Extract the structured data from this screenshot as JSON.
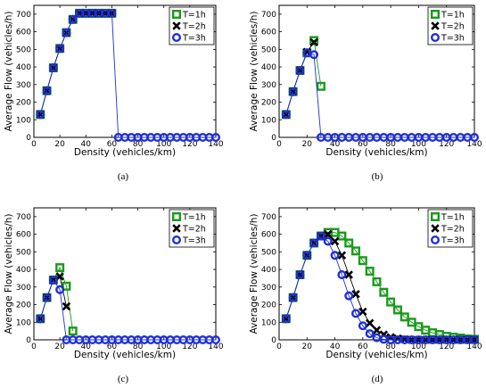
{
  "chart_data": [
    {
      "type": "scatter",
      "caption": "(a)",
      "xlabel": "Density (vehicles/km)",
      "ylabel": "Average Flow (vehicles/h)",
      "xlim": [
        0,
        140
      ],
      "ylim": [
        0,
        750
      ],
      "xticks": [
        0,
        20,
        40,
        60,
        80,
        100,
        120,
        140
      ],
      "yticks": [
        0,
        100,
        200,
        300,
        400,
        500,
        600,
        700
      ],
      "legend_position": "top-right",
      "series": [
        {
          "name": "T=1h",
          "color": "#1a9a1a",
          "marker": "square",
          "x": [
            5,
            10,
            15,
            20,
            25,
            30,
            35,
            40,
            45,
            50,
            55,
            60
          ],
          "y": [
            130,
            265,
            395,
            505,
            595,
            670,
            705,
            705,
            705,
            705,
            705,
            705
          ]
        },
        {
          "name": "T=2h",
          "color": "#000000",
          "marker": "x",
          "x": [
            5,
            10,
            15,
            20,
            25,
            30,
            35,
            40,
            45,
            50,
            55,
            60
          ],
          "y": [
            130,
            265,
            395,
            505,
            595,
            670,
            705,
            705,
            705,
            705,
            705,
            705
          ]
        },
        {
          "name": "T=3h",
          "color": "#1f2fd6",
          "marker": "circle",
          "x": [
            5,
            10,
            15,
            20,
            25,
            30,
            35,
            40,
            45,
            50,
            55,
            60,
            65,
            70,
            75,
            80,
            85,
            90,
            95,
            100,
            105,
            110,
            115,
            120,
            125,
            130,
            135,
            140
          ],
          "y": [
            130,
            265,
            395,
            505,
            595,
            670,
            705,
            705,
            705,
            705,
            705,
            705,
            0,
            0,
            0,
            0,
            0,
            0,
            0,
            0,
            0,
            0,
            0,
            0,
            0,
            0,
            0,
            0
          ]
        }
      ]
    },
    {
      "type": "scatter",
      "caption": "(b)",
      "xlabel": "Density (vehicles/km)",
      "ylabel": "Average Flow (vehicles/h)",
      "xlim": [
        0,
        140
      ],
      "ylim": [
        0,
        750
      ],
      "xticks": [
        0,
        20,
        40,
        60,
        80,
        100,
        120,
        140
      ],
      "yticks": [
        0,
        100,
        200,
        300,
        400,
        500,
        600,
        700
      ],
      "legend_position": "top-right",
      "series": [
        {
          "name": "T=1h",
          "color": "#1a9a1a",
          "marker": "square",
          "x": [
            5,
            10,
            15,
            20,
            25,
            30
          ],
          "y": [
            130,
            260,
            380,
            480,
            550,
            290
          ]
        },
        {
          "name": "T=2h",
          "color": "#000000",
          "marker": "x",
          "x": [
            5,
            10,
            15,
            20,
            25
          ],
          "y": [
            130,
            260,
            380,
            485,
            540
          ]
        },
        {
          "name": "T=3h",
          "color": "#1f2fd6",
          "marker": "circle",
          "x": [
            5,
            10,
            15,
            20,
            25,
            30,
            35,
            40,
            45,
            50,
            55,
            60,
            65,
            70,
            75,
            80,
            85,
            90,
            95,
            100,
            105,
            110,
            115,
            120,
            125,
            130,
            135,
            140
          ],
          "y": [
            130,
            260,
            380,
            480,
            470,
            0,
            0,
            0,
            0,
            0,
            0,
            0,
            0,
            0,
            0,
            0,
            0,
            0,
            0,
            0,
            0,
            0,
            0,
            0,
            0,
            0,
            0,
            0
          ]
        }
      ]
    },
    {
      "type": "scatter",
      "caption": "(c)",
      "xlabel": "Density (vehicles/km)",
      "ylabel": "Average Flow (vehicles/h)",
      "xlim": [
        0,
        140
      ],
      "ylim": [
        0,
        750
      ],
      "xticks": [
        0,
        20,
        40,
        60,
        80,
        100,
        120,
        140
      ],
      "yticks": [
        0,
        100,
        200,
        300,
        400,
        500,
        600,
        700
      ],
      "legend_position": "top-right",
      "series": [
        {
          "name": "T=1h",
          "color": "#1a9a1a",
          "marker": "square",
          "x": [
            5,
            10,
            15,
            20,
            25,
            30
          ],
          "y": [
            120,
            240,
            340,
            410,
            305,
            50
          ]
        },
        {
          "name": "T=2h",
          "color": "#000000",
          "marker": "x",
          "x": [
            5,
            10,
            15,
            20,
            25
          ],
          "y": [
            120,
            240,
            340,
            360,
            190
          ]
        },
        {
          "name": "T=3h",
          "color": "#1f2fd6",
          "marker": "circle",
          "x": [
            5,
            10,
            15,
            20,
            25,
            30,
            35,
            40,
            45,
            50,
            55,
            60,
            65,
            70,
            75,
            80,
            85,
            90,
            95,
            100,
            105,
            110,
            115,
            120,
            125,
            130,
            135,
            140
          ],
          "y": [
            120,
            240,
            340,
            285,
            0,
            0,
            0,
            0,
            0,
            0,
            0,
            0,
            0,
            0,
            0,
            0,
            0,
            0,
            0,
            0,
            0,
            0,
            0,
            0,
            0,
            0,
            0,
            0
          ]
        }
      ]
    },
    {
      "type": "scatter",
      "caption": "(d)",
      "xlabel": "Density (vehicles/km)",
      "ylabel": "Average Flow (vehicles/h)",
      "xlim": [
        0,
        140
      ],
      "ylim": [
        0,
        750
      ],
      "xticks": [
        0,
        20,
        40,
        60,
        80,
        100,
        120,
        140
      ],
      "yticks": [
        0,
        100,
        200,
        300,
        400,
        500,
        600,
        700
      ],
      "legend_position": "top-right",
      "series": [
        {
          "name": "T=1h",
          "color": "#1a9a1a",
          "marker": "square",
          "x": [
            5,
            10,
            15,
            20,
            25,
            30,
            35,
            40,
            45,
            50,
            55,
            60,
            65,
            70,
            75,
            80,
            85,
            90,
            95,
            100,
            105,
            110,
            115,
            120,
            125,
            130,
            135,
            140
          ],
          "y": [
            120,
            240,
            370,
            480,
            550,
            590,
            610,
            610,
            590,
            550,
            505,
            450,
            390,
            330,
            270,
            215,
            170,
            130,
            100,
            75,
            55,
            40,
            30,
            20,
            15,
            10,
            5,
            3
          ]
        },
        {
          "name": "T=2h",
          "color": "#000000",
          "marker": "x",
          "x": [
            5,
            10,
            15,
            20,
            25,
            30,
            35,
            40,
            45,
            50,
            55,
            60,
            65,
            70,
            75,
            80,
            85,
            90,
            95,
            100,
            105,
            110,
            115,
            120,
            125,
            130,
            135,
            140
          ],
          "y": [
            120,
            240,
            370,
            480,
            550,
            590,
            600,
            560,
            480,
            370,
            260,
            160,
            95,
            55,
            30,
            15,
            8,
            3,
            0,
            0,
            0,
            0,
            0,
            0,
            0,
            0,
            0,
            0
          ]
        },
        {
          "name": "T=3h",
          "color": "#1f2fd6",
          "marker": "circle",
          "x": [
            5,
            10,
            15,
            20,
            25,
            30,
            35,
            40,
            45,
            50,
            55,
            60,
            65,
            70,
            75,
            80,
            85,
            90,
            95,
            100,
            105,
            110,
            115,
            120,
            125,
            130,
            135,
            140
          ],
          "y": [
            120,
            240,
            370,
            480,
            550,
            590,
            560,
            480,
            370,
            250,
            150,
            80,
            35,
            12,
            3,
            0,
            0,
            0,
            0,
            0,
            0,
            0,
            0,
            0,
            0,
            0,
            0,
            0
          ]
        }
      ]
    }
  ]
}
